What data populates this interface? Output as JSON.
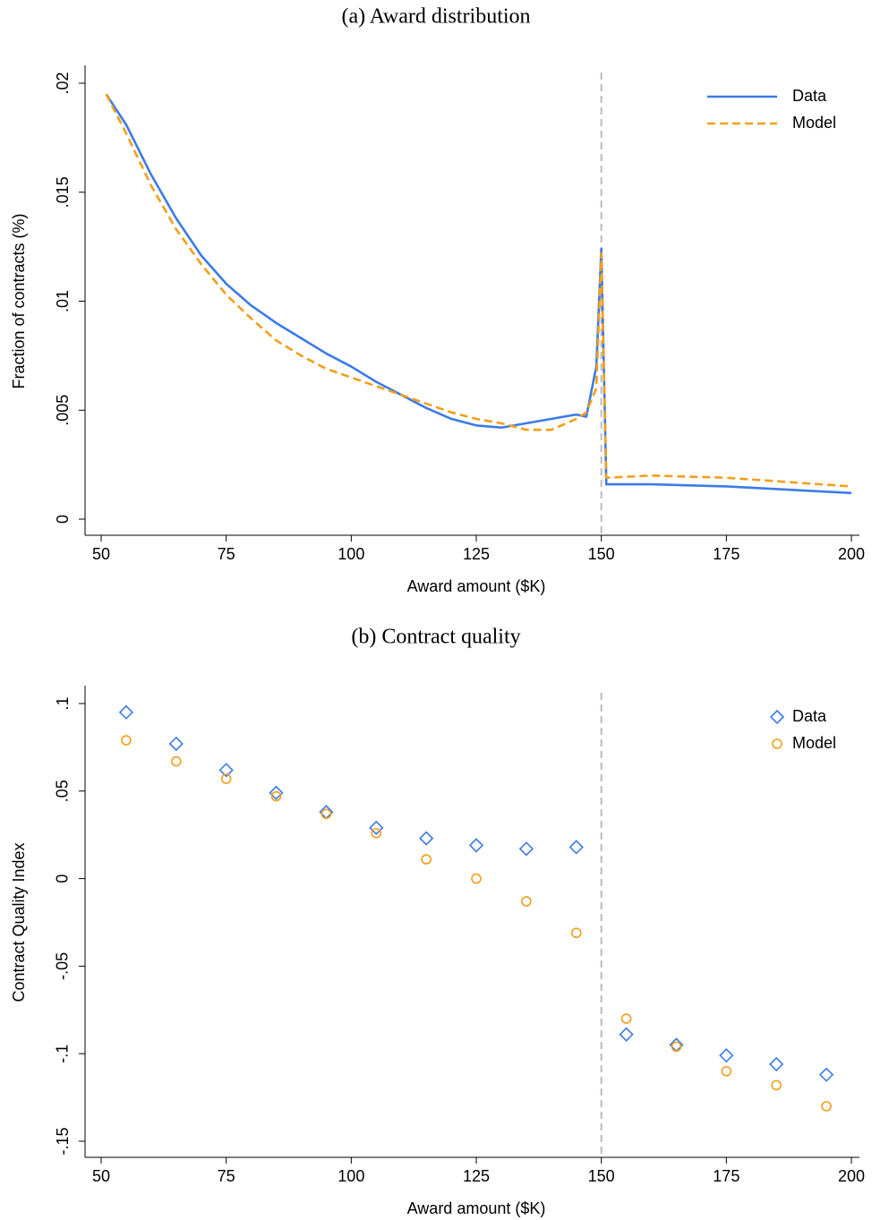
{
  "chart_data": [
    {
      "type": "line",
      "title": "(a) Award distribution",
      "x_label": "Award amount ($K)",
      "y_label": "Fraction of contracts (%)",
      "x": [
        51,
        55,
        60,
        65,
        70,
        75,
        80,
        85,
        90,
        95,
        100,
        105,
        110,
        115,
        120,
        125,
        130,
        135,
        140,
        145,
        147,
        149,
        150,
        151,
        160,
        175,
        200
      ],
      "series": [
        {
          "name": "Data",
          "color": "#3c7be8",
          "style": "solid",
          "values": [
            0.0195,
            0.0181,
            0.0158,
            0.0138,
            0.0121,
            0.0108,
            0.0098,
            0.009,
            0.0083,
            0.0076,
            0.007,
            0.0063,
            0.0057,
            0.0051,
            0.0046,
            0.0043,
            0.0042,
            0.0044,
            0.0046,
            0.0048,
            0.0047,
            0.007,
            0.0124,
            0.0016,
            0.0016,
            0.0015,
            0.0012
          ]
        },
        {
          "name": "Model",
          "color": "#f29f1b",
          "style": "dashed",
          "values": [
            0.0195,
            0.0177,
            0.0153,
            0.0133,
            0.0117,
            0.0103,
            0.0092,
            0.0082,
            0.0075,
            0.0069,
            0.0065,
            0.0061,
            0.0057,
            0.0053,
            0.0049,
            0.0046,
            0.0044,
            0.0041,
            0.0041,
            0.0046,
            0.0049,
            0.006,
            0.0122,
            0.0019,
            0.002,
            0.0019,
            0.0015
          ]
        }
      ],
      "xlim": [
        50,
        200
      ],
      "xticks": [
        50,
        75,
        100,
        125,
        150,
        175,
        200
      ],
      "ylim": [
        0,
        0.02
      ],
      "yticks": [
        0,
        {
          "value": 0.005,
          "label": ".005"
        },
        {
          "value": 0.01,
          "label": ".01"
        },
        {
          "value": 0.015,
          "label": ".015"
        },
        {
          "value": 0.02,
          "label": ".02"
        }
      ],
      "vline": 150,
      "legend": "upper right",
      "grid": false
    },
    {
      "type": "scatter",
      "title": "(b) Contract quality",
      "x_label": "Award amount ($K)",
      "y_label": "Contract Quality Index",
      "x": [
        55,
        65,
        75,
        85,
        95,
        105,
        115,
        125,
        135,
        145,
        155,
        165,
        175,
        185,
        195
      ],
      "series": [
        {
          "name": "Data",
          "color": "#3c7be8",
          "marker": "diamond",
          "values": [
            0.095,
            0.077,
            0.062,
            0.049,
            0.038,
            0.029,
            0.023,
            0.019,
            0.017,
            0.018,
            -0.089,
            -0.095,
            -0.101,
            -0.106,
            -0.112
          ]
        },
        {
          "name": "Model",
          "color": "#f29f1b",
          "marker": "circle",
          "values": [
            0.079,
            0.067,
            0.057,
            0.047,
            0.037,
            0.026,
            0.011,
            0,
            -0.013,
            -0.031,
            -0.08,
            -0.096,
            -0.11,
            -0.118,
            -0.13
          ]
        }
      ],
      "xlim": [
        50,
        200
      ],
      "xticks": [
        50,
        75,
        100,
        125,
        150,
        175,
        200
      ],
      "ylim": [
        -0.15,
        0.1
      ],
      "yticks": [
        {
          "value": -0.15,
          "label": "-.15"
        },
        {
          "value": -0.1,
          "label": "-.1"
        },
        {
          "value": -0.05,
          "label": "-.05"
        },
        0,
        {
          "value": 0.05,
          "label": ".05"
        },
        {
          "value": 0.1,
          "label": ".1"
        }
      ],
      "vline": 150,
      "legend": "upper right",
      "grid": false
    }
  ]
}
